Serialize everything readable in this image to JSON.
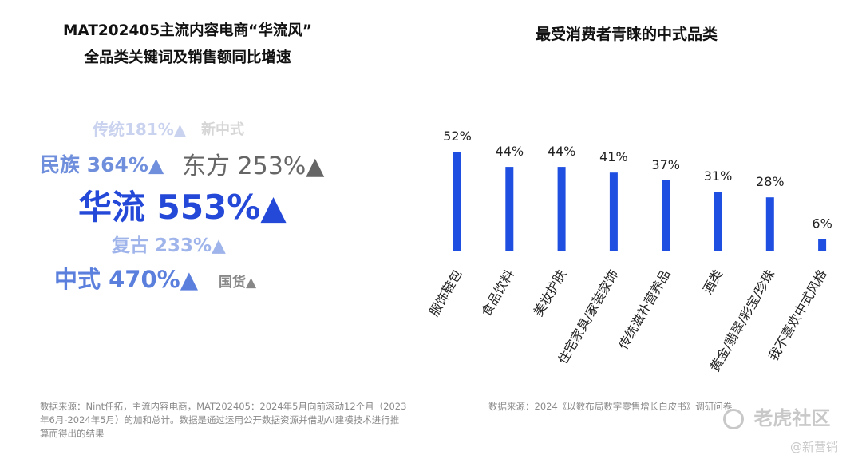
{
  "left": {
    "title_line1": "MAT202405主流内容电商“华流风”",
    "title_line2": "全品类关键词及销售额同比增速",
    "keywords": [
      {
        "id": "chuantong",
        "text": "传统181%▲",
        "color": "#c9d2ee"
      },
      {
        "id": "xinzhongshi",
        "text": "新中式",
        "color": "#d6d6d6"
      },
      {
        "id": "minzu",
        "text": "民族 364%▲",
        "color": "#6f8fdd"
      },
      {
        "id": "dongfang",
        "text": "东方 253%▲",
        "color": "#666666"
      },
      {
        "id": "huaLiu",
        "text": "华流 553%▲",
        "color": "#2448d8"
      },
      {
        "id": "fugu",
        "text": "复古 233%▲",
        "color": "#9fb4ea"
      },
      {
        "id": "zhongshi",
        "text": "中式 470%▲",
        "color": "#5b7fdd"
      },
      {
        "id": "guohuo",
        "text": "国货▲",
        "color": "#888888"
      }
    ],
    "source": "数据来源：Nint任拓，主流内容电商，MAT202405：2024年5月向前滚动12个月（2023年6月-2024年5月）的加和总计。数据是通过运用公开数据资源并借助AI建模技术进行推算而得出的结果"
  },
  "right": {
    "source": "数据来源：2024《以数布局数字零售增长白皮书》调研问卷"
  },
  "watermark": {
    "main": "老虎社区",
    "sub": "@新营销"
  },
  "chart_data": {
    "type": "bar",
    "title": "最受消费者青睐的中式品类",
    "categories": [
      "服饰鞋包",
      "食品饮料",
      "美妆护肤",
      "住宅家具/家装家饰",
      "传统滋补营养品",
      "酒类",
      "黄金/翡翠/彩宝/珍珠",
      "我不喜欢中式风格"
    ],
    "values": [
      52,
      44,
      44,
      41,
      37,
      31,
      28,
      6
    ],
    "value_labels": [
      "52%",
      "44%",
      "44%",
      "41%",
      "37%",
      "31%",
      "28%",
      "6%"
    ],
    "xlabel": "",
    "ylabel": "",
    "ylim": [
      0,
      52
    ],
    "bar_color": "#1f4fe0",
    "grid": false,
    "legend": "none"
  }
}
